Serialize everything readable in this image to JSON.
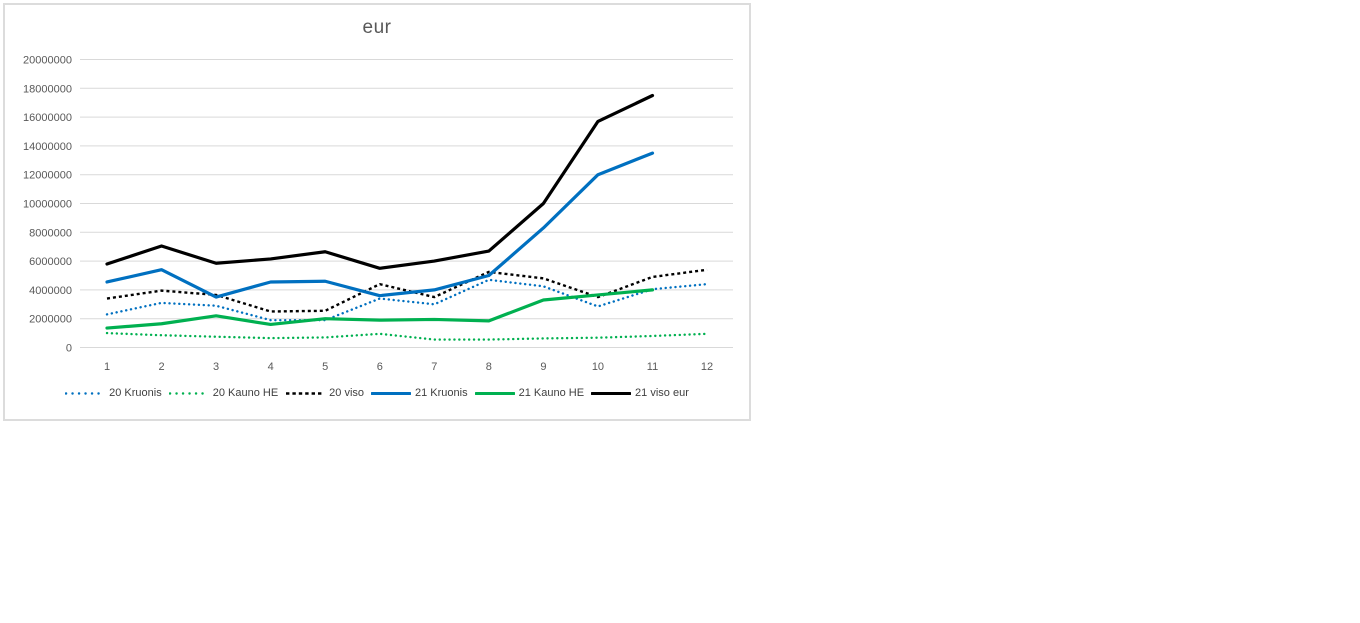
{
  "chart": {
    "border_color": "#dcdcdc",
    "grid_color": "#d9d9d9",
    "axis_text_color": "#595959",
    "title_color": "#595959",
    "legend_text_color": "#3f3f3f",
    "background": "#ffffff"
  },
  "chart_data": {
    "type": "line",
    "title": "eur",
    "xlabel": "",
    "ylabel": "",
    "x": [
      1,
      2,
      3,
      4,
      5,
      6,
      7,
      8,
      9,
      10,
      11,
      12
    ],
    "x_ticks": [
      "1",
      "2",
      "3",
      "4",
      "5",
      "6",
      "7",
      "8",
      "9",
      "10",
      "11",
      "12"
    ],
    "y_ticks": [
      "0",
      "2000000",
      "4000000",
      "6000000",
      "8000000",
      "10000000",
      "12000000",
      "14000000",
      "16000000",
      "18000000",
      "20000000"
    ],
    "ylim": [
      0,
      20000000
    ],
    "y_tick_step": 2000000,
    "grid": true,
    "legend_position": "bottom",
    "series": [
      {
        "name": "20 Kruonis",
        "color": "#0070C0",
        "dash": "dot",
        "values": [
          2300000,
          3100000,
          2900000,
          1900000,
          1900000,
          3400000,
          3000000,
          4700000,
          4250000,
          2850000,
          4050000,
          4400000
        ]
      },
      {
        "name": "20 Kauno HE",
        "color": "#00B050",
        "dash": "dot",
        "values": [
          1000000,
          850000,
          750000,
          650000,
          700000,
          950000,
          550000,
          550000,
          630000,
          680000,
          800000,
          950000
        ]
      },
      {
        "name": "20 viso",
        "color": "#000000",
        "dash": "dash",
        "values": [
          3400000,
          3950000,
          3650000,
          2500000,
          2550000,
          4400000,
          3500000,
          5250000,
          4800000,
          3500000,
          4900000,
          5400000
        ]
      },
      {
        "name": "21 Kruonis",
        "color": "#0070C0",
        "dash": "solid",
        "values": [
          4550000,
          5400000,
          3500000,
          4550000,
          4600000,
          3600000,
          4000000,
          5000000,
          8300000,
          12000000,
          13500000
        ]
      },
      {
        "name": "21 Kauno HE",
        "color": "#00B050",
        "dash": "solid",
        "values": [
          1350000,
          1650000,
          2200000,
          1600000,
          2000000,
          1900000,
          1950000,
          1850000,
          3300000,
          3650000,
          4000000
        ]
      },
      {
        "name": "21 viso eur",
        "color": "#000000",
        "dash": "solid",
        "values": [
          5800000,
          7050000,
          5850000,
          6150000,
          6650000,
          5500000,
          6000000,
          6700000,
          10000000,
          15700000,
          17500000
        ]
      }
    ]
  }
}
